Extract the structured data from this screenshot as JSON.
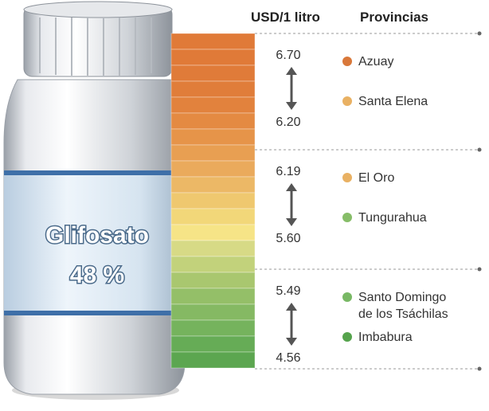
{
  "header": {
    "price": "USD/1 litro",
    "provinces": "Provincias"
  },
  "product": {
    "name": "Glifosato",
    "concentration": "48 %"
  },
  "groups": [
    {
      "high": "6.70",
      "low": "6.20",
      "provinces": [
        {
          "name": [
            "Azuay"
          ],
          "color": "#d9783a"
        },
        {
          "name": [
            "Santa Elena"
          ],
          "color": "#e9b163"
        }
      ]
    },
    {
      "high": "6.19",
      "low": "5.60",
      "provinces": [
        {
          "name": [
            "El Oro"
          ],
          "color": "#e9b163"
        },
        {
          "name": [
            "Tungurahua"
          ],
          "color": "#86bd68"
        }
      ]
    },
    {
      "high": "5.49",
      "low": "4.56",
      "provinces": [
        {
          "name": [
            "Santo Domingo",
            "de los Tsáchilas"
          ],
          "color": "#78b864"
        },
        {
          "name": [
            "Imbabura"
          ],
          "color": "#55a34c"
        }
      ]
    }
  ]
}
